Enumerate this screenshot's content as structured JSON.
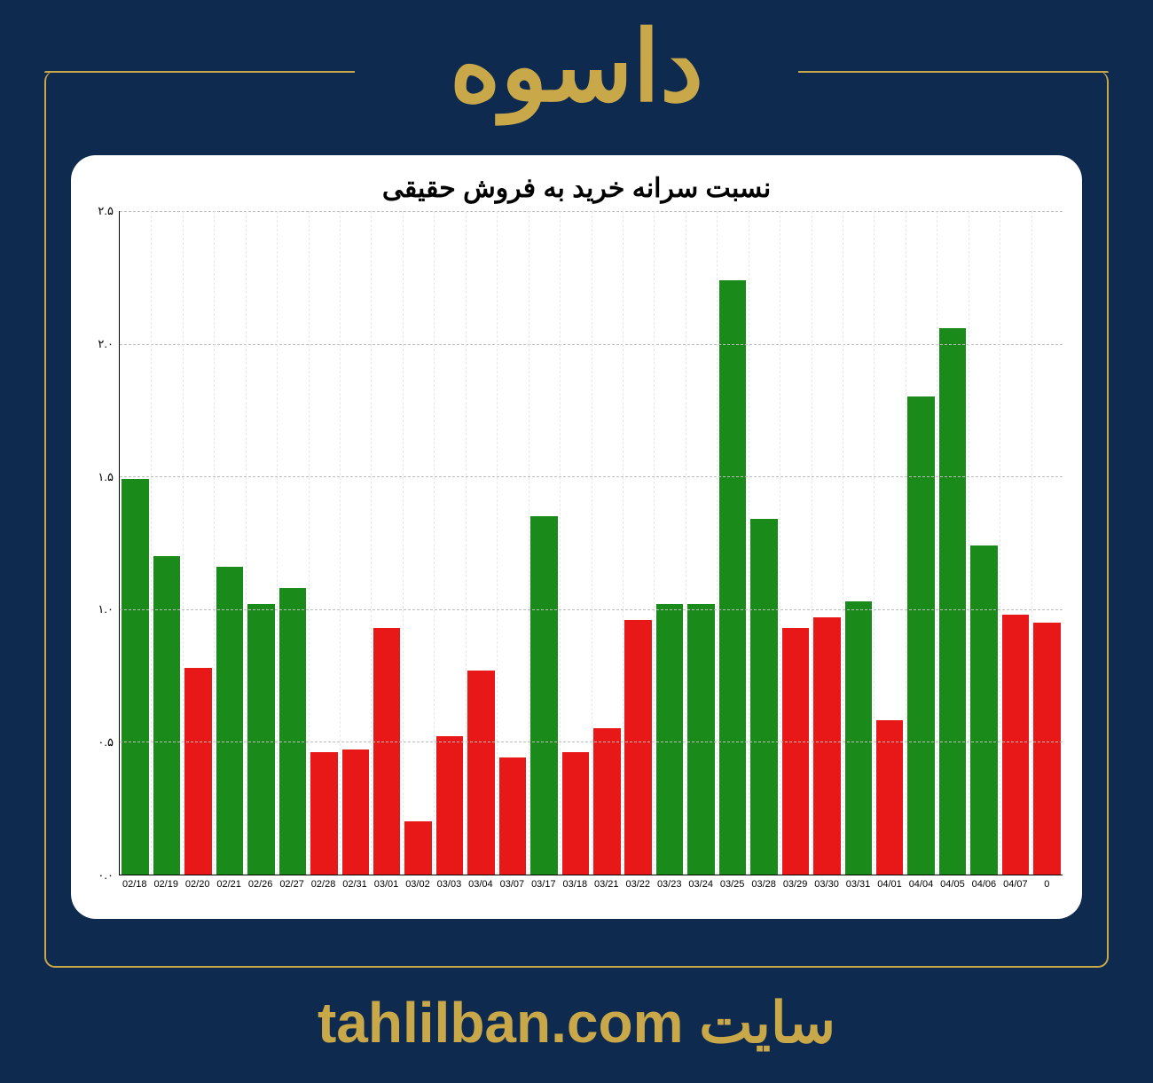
{
  "page": {
    "background_color": "#0f2a4f",
    "accent_color": "#c9a84a",
    "header_title": "داسوه",
    "header_fontsize": 110,
    "footer_prefix": "سایت",
    "footer_domain": "tahlilban.com",
    "footer_fontsize": 64
  },
  "chart": {
    "type": "bar",
    "title": "نسبت سرانه خرید به فروش حقیقی",
    "title_fontsize": 30,
    "title_color": "#000000",
    "background_color": "#ffffff",
    "card_border_radius": 28,
    "ylim": [
      0.0,
      2.5
    ],
    "ytick_step": 0.5,
    "ytick_labels": [
      "۰.۰",
      "۰.۵",
      "۱.۰",
      "۱.۵",
      "۲.۰",
      "۲.۵"
    ],
    "ytick_values": [
      0.0,
      0.5,
      1.0,
      1.5,
      2.0,
      2.5
    ],
    "grid_color": "#bdbdbd",
    "grid_dash": true,
    "axis_color": "#000000",
    "bar_width": 0.86,
    "green_color": "#1a8a1a",
    "red_color": "#e81818",
    "categories": [
      "02/18",
      "02/19",
      "02/20",
      "02/21",
      "02/26",
      "02/27",
      "02/28",
      "02/31",
      "03/01",
      "03/02",
      "03/03",
      "03/04",
      "03/07",
      "03/17",
      "03/18",
      "03/21",
      "03/22",
      "03/23",
      "03/24",
      "03/25",
      "03/28",
      "03/29",
      "03/30",
      "03/31",
      "04/01",
      "04/04",
      "04/05",
      "04/06",
      "04/07",
      "0"
    ],
    "values": [
      1.49,
      1.2,
      0.78,
      1.16,
      1.02,
      1.08,
      0.46,
      0.47,
      0.93,
      0.2,
      0.52,
      0.77,
      0.44,
      1.35,
      0.46,
      0.55,
      0.96,
      1.02,
      1.02,
      2.24,
      1.34,
      0.93,
      0.97,
      1.03,
      0.58,
      1.8,
      2.06,
      1.24,
      0.98,
      0.95
    ],
    "bar_colors": [
      "#1a8a1a",
      "#1a8a1a",
      "#e81818",
      "#1a8a1a",
      "#1a8a1a",
      "#1a8a1a",
      "#e81818",
      "#e81818",
      "#e81818",
      "#e81818",
      "#e81818",
      "#e81818",
      "#e81818",
      "#1a8a1a",
      "#e81818",
      "#e81818",
      "#e81818",
      "#1a8a1a",
      "#1a8a1a",
      "#1a8a1a",
      "#1a8a1a",
      "#e81818",
      "#e81818",
      "#1a8a1a",
      "#e81818",
      "#1a8a1a",
      "#1a8a1a",
      "#1a8a1a",
      "#e81818",
      "#e81818"
    ],
    "xlabel_fontsize": 11,
    "ylabel_fontsize": 13
  }
}
